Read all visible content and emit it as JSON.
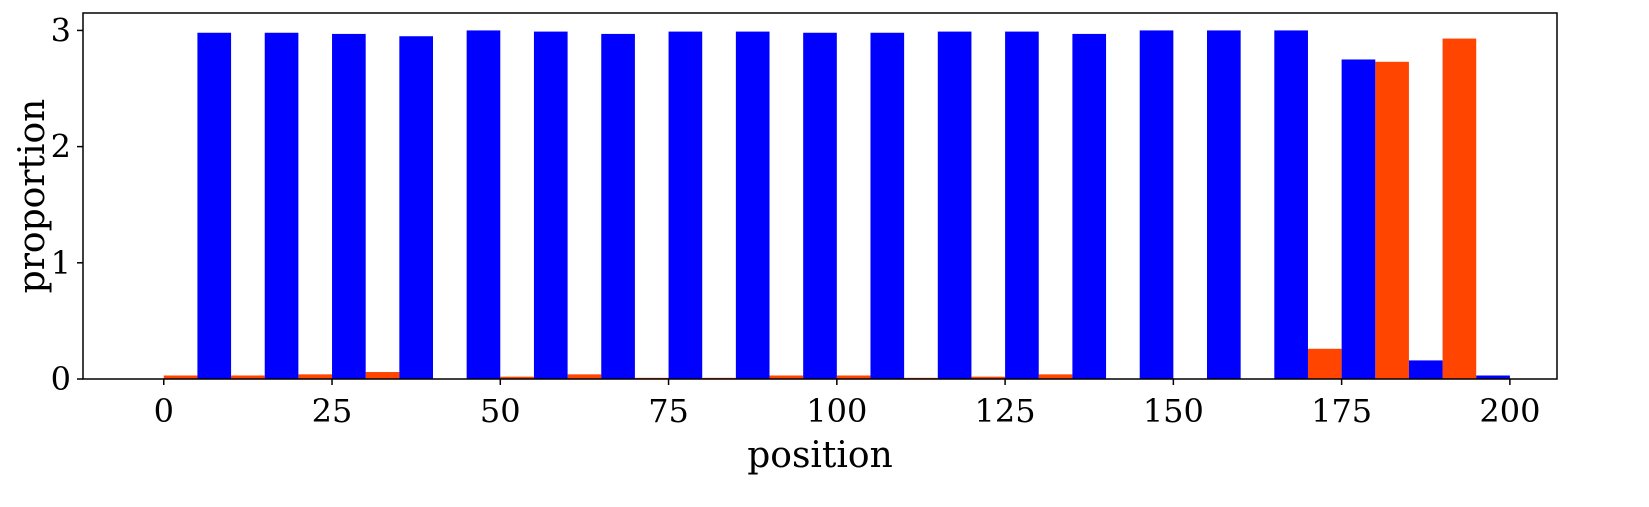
{
  "chart_data": {
    "type": "bar",
    "xlabel": "position",
    "ylabel": "proportion",
    "xlim": [
      -12,
      207
    ],
    "ylim": [
      0,
      3.15
    ],
    "x_ticks": [
      "0",
      "25",
      "50",
      "75",
      "100",
      "125",
      "150",
      "175",
      "200"
    ],
    "y_ticks": [
      "0",
      "1",
      "2",
      "3"
    ],
    "grid": false,
    "legend": "none",
    "bin_width": 10,
    "series": [
      {
        "color": "#ff4500",
        "values": [
          {
            "x": 0,
            "y": 0.03
          },
          {
            "x": 10,
            "y": 0.03
          },
          {
            "x": 20,
            "y": 0.04
          },
          {
            "x": 30,
            "y": 0.06
          },
          {
            "x": 40,
            "y": 0.0
          },
          {
            "x": 50,
            "y": 0.02
          },
          {
            "x": 60,
            "y": 0.04
          },
          {
            "x": 70,
            "y": 0.01
          },
          {
            "x": 80,
            "y": 0.01
          },
          {
            "x": 90,
            "y": 0.03
          },
          {
            "x": 100,
            "y": 0.03
          },
          {
            "x": 110,
            "y": 0.01
          },
          {
            "x": 120,
            "y": 0.02
          },
          {
            "x": 130,
            "y": 0.04
          },
          {
            "x": 140,
            "y": 0.0
          },
          {
            "x": 150,
            "y": 0.0
          },
          {
            "x": 160,
            "y": 0.0
          },
          {
            "x": 170,
            "y": 0.26
          },
          {
            "x": 180,
            "y": 2.73
          },
          {
            "x": 190,
            "y": 2.93
          }
        ]
      },
      {
        "color": "#0000ff",
        "values": [
          {
            "x": 5,
            "y": 2.98
          },
          {
            "x": 15,
            "y": 2.98
          },
          {
            "x": 25,
            "y": 2.97
          },
          {
            "x": 35,
            "y": 2.95
          },
          {
            "x": 45,
            "y": 3.0
          },
          {
            "x": 55,
            "y": 2.99
          },
          {
            "x": 65,
            "y": 2.97
          },
          {
            "x": 75,
            "y": 2.99
          },
          {
            "x": 85,
            "y": 2.99
          },
          {
            "x": 95,
            "y": 2.98
          },
          {
            "x": 105,
            "y": 2.98
          },
          {
            "x": 115,
            "y": 2.99
          },
          {
            "x": 125,
            "y": 2.99
          },
          {
            "x": 135,
            "y": 2.97
          },
          {
            "x": 145,
            "y": 3.0
          },
          {
            "x": 155,
            "y": 3.0
          },
          {
            "x": 165,
            "y": 3.0
          },
          {
            "x": 175,
            "y": 2.75
          },
          {
            "x": 185,
            "y": 0.16
          },
          {
            "x": 195,
            "y": 0.03
          }
        ]
      }
    ]
  }
}
